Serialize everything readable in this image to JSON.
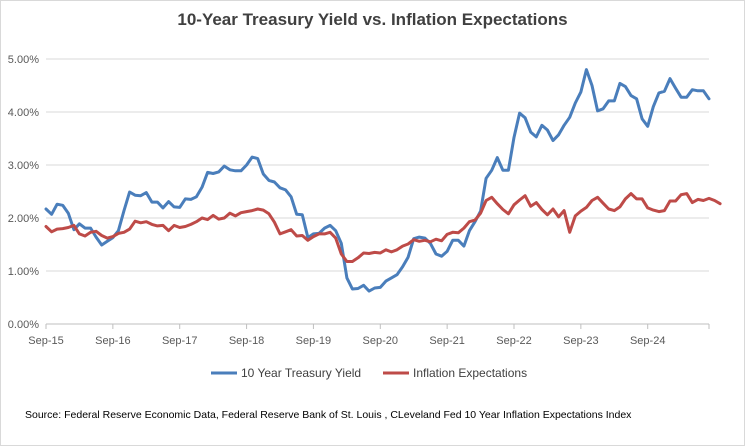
{
  "chart_data": {
    "type": "line",
    "title": "10-Year Treasury Yield vs. Inflation Expectations",
    "xlabel": "",
    "ylabel": "",
    "ylim": [
      0,
      5
    ],
    "grid": "horizontal",
    "legend_placement": "bottom-center",
    "x_tick_labels": [
      "Sep-15",
      "Sep-16",
      "Sep-17",
      "Sep-18",
      "Sep-19",
      "Sep-20",
      "Sep-21",
      "Sep-22",
      "Sep-23",
      "Sep-24"
    ],
    "y_tick_labels": [
      "0.00%",
      "1.00%",
      "2.00%",
      "3.00%",
      "4.00%",
      "5.00%"
    ],
    "x_start": "2015-09",
    "x_end": "2025-06",
    "series": [
      {
        "name": "10 Year Treasury Yield",
        "color": "#4a7ebb",
        "values": [
          2.17,
          2.07,
          2.26,
          2.24,
          2.09,
          1.78,
          1.89,
          1.81,
          1.81,
          1.64,
          1.49,
          1.56,
          1.63,
          1.76,
          2.14,
          2.49,
          2.43,
          2.42,
          2.48,
          2.3,
          2.3,
          2.19,
          2.31,
          2.21,
          2.2,
          2.36,
          2.35,
          2.4,
          2.58,
          2.86,
          2.84,
          2.87,
          2.98,
          2.91,
          2.89,
          2.89,
          3.0,
          3.15,
          3.12,
          2.83,
          2.71,
          2.68,
          2.57,
          2.53,
          2.4,
          2.07,
          2.06,
          1.63,
          1.7,
          1.71,
          1.81,
          1.86,
          1.76,
          1.52,
          0.87,
          0.66,
          0.67,
          0.73,
          0.62,
          0.68,
          0.69,
          0.81,
          0.87,
          0.93,
          1.08,
          1.26,
          1.61,
          1.64,
          1.62,
          1.52,
          1.32,
          1.28,
          1.37,
          1.58,
          1.58,
          1.47,
          1.76,
          1.93,
          2.13,
          2.75,
          2.9,
          3.14,
          2.9,
          2.9,
          3.52,
          3.98,
          3.89,
          3.62,
          3.53,
          3.75,
          3.66,
          3.46,
          3.57,
          3.75,
          3.9,
          4.17,
          4.38,
          4.8,
          4.5,
          4.02,
          4.06,
          4.21,
          4.21,
          4.54,
          4.48,
          4.31,
          4.25,
          3.87,
          3.73,
          4.1,
          4.36,
          4.39,
          4.63,
          4.45,
          4.28,
          4.28,
          4.42,
          4.4,
          4.4,
          4.25
        ]
      },
      {
        "name": "Inflation Expectations",
        "color": "#be4b48",
        "values": [
          1.84,
          1.74,
          1.79,
          1.8,
          1.82,
          1.86,
          1.7,
          1.66,
          1.73,
          1.75,
          1.67,
          1.62,
          1.65,
          1.71,
          1.73,
          1.79,
          1.94,
          1.91,
          1.93,
          1.88,
          1.85,
          1.86,
          1.76,
          1.86,
          1.82,
          1.84,
          1.88,
          1.93,
          2.0,
          1.97,
          2.05,
          1.98,
          2.0,
          2.09,
          2.04,
          2.1,
          2.12,
          2.14,
          2.17,
          2.15,
          2.08,
          1.92,
          1.7,
          1.74,
          1.78,
          1.66,
          1.67,
          1.58,
          1.65,
          1.7,
          1.7,
          1.73,
          1.62,
          1.32,
          1.18,
          1.18,
          1.25,
          1.34,
          1.33,
          1.35,
          1.34,
          1.4,
          1.36,
          1.4,
          1.47,
          1.51,
          1.59,
          1.56,
          1.58,
          1.55,
          1.6,
          1.57,
          1.69,
          1.73,
          1.72,
          1.81,
          1.93,
          1.96,
          2.09,
          2.33,
          2.39,
          2.27,
          2.16,
          2.08,
          2.25,
          2.34,
          2.42,
          2.22,
          2.29,
          2.16,
          2.06,
          2.17,
          2.02,
          2.14,
          1.73,
          2.04,
          2.13,
          2.2,
          2.33,
          2.39,
          2.28,
          2.17,
          2.14,
          2.21,
          2.36,
          2.46,
          2.36,
          2.36,
          2.19,
          2.15,
          2.12,
          2.14,
          2.32,
          2.32,
          2.44,
          2.46,
          2.29,
          2.35,
          2.33,
          2.37,
          2.33,
          2.27
        ]
      }
    ],
    "source": "Source: Federal Reserve Economic Data, Federal Reserve Bank of St. Louis , CLeveland Fed 10 Year Inflation Expectations Index"
  }
}
